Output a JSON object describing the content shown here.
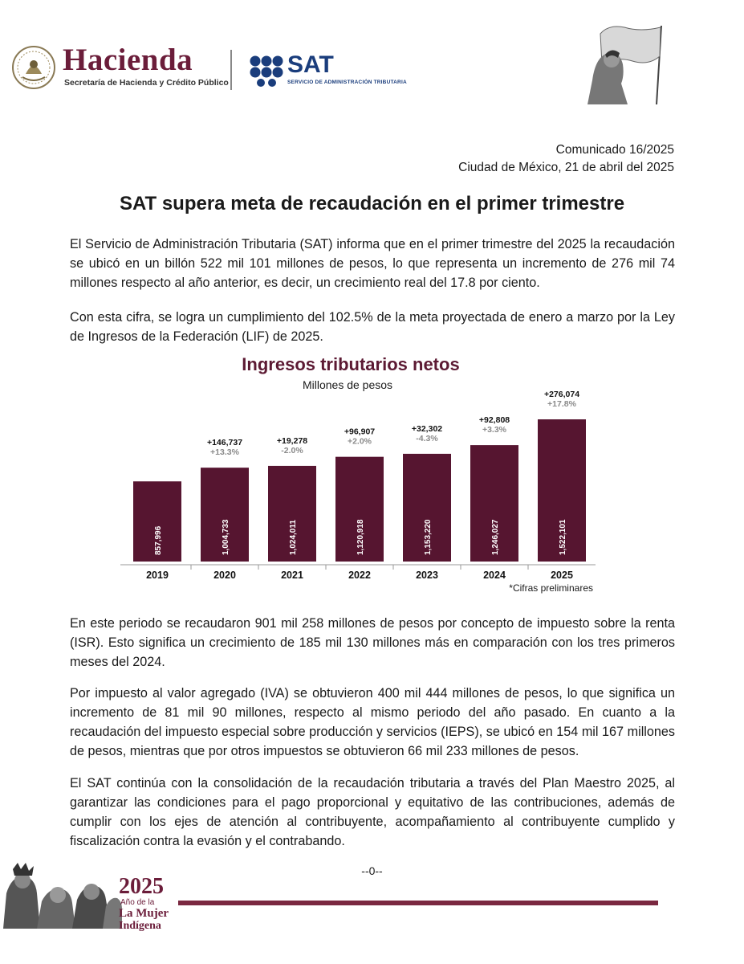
{
  "header": {
    "hacienda_title": "Hacienda",
    "hacienda_subtitle": "Secretaría de Hacienda y Crédito Público",
    "sat_title": "SAT",
    "sat_subtitle": "SERVICIO DE ADMINISTRACIÓN TRIBUTARIA",
    "seal_icon": "mexico-seal-icon",
    "flag_icon": "woman-with-flag-illustration"
  },
  "release": {
    "number": "Comunicado 16/2025",
    "place_date": "Ciudad de México, 21 de abril del 2025",
    "headline": "SAT supera meta de recaudación en el primer trimestre"
  },
  "paragraphs": {
    "p1": "El Servicio de Administración Tributaria (SAT) informa que en el primer trimestre del 2025 la recaudación se ubicó en un billón 522 mil 101 millones de pesos, lo que representa un incremento de 276 mil 74 millones respecto al año anterior, es decir, un crecimiento real del 17.8 por ciento.",
    "p2": "Con esta cifra, se logra un cumplimiento del 102.5% de la meta proyectada de enero a marzo por la Ley de Ingresos de la Federación (LIF) de 2025.",
    "p3": "En este periodo se recaudaron 901 mil 258 millones de pesos por concepto de impuesto sobre la renta (ISR). Esto significa un crecimiento de 185 mil 130 millones más en comparación con los tres primeros meses del 2024.",
    "p4": "Por impuesto al valor agregado (IVA) se obtuvieron 400 mil 444 millones de pesos, lo que significa un incremento de 81 mil 90 millones, respecto al mismo periodo del año pasado. En cuanto a la recaudación del impuesto especial sobre producción y servicios (IEPS), se ubicó en 154 mil 167 millones de pesos, mientras que por otros impuestos se obtuvieron 66 mil 233 millones de pesos.",
    "p5": "El SAT continúa con la consolidación de la recaudación tributaria a través del Plan Maestro 2025, al garantizar las condiciones para el pago proporcional y equitativo de las contribuciones, además de cumplir con los ejes de atención al contribuyente, acompañamiento al contribuyente cumplido y fiscalización contra la evasión y el contrabando."
  },
  "chart_data": {
    "type": "bar",
    "title": "Ingresos tributarios netos",
    "subtitle": "Millones de pesos",
    "categories": [
      "2019",
      "2020",
      "2021",
      "2022",
      "2023",
      "2024",
      "2025"
    ],
    "values": [
      857996,
      1004733,
      1024011,
      1120918,
      1153220,
      1246027,
      1522101
    ],
    "value_labels": [
      "857,996",
      "1,004,733",
      "1,024,011",
      "1,120,918",
      "1,153,220",
      "1,246,027",
      "1,522,101"
    ],
    "change_abs": [
      "",
      "+146,737",
      "+19,278",
      "+96,907",
      "+32,302",
      "+92,808",
      "+276,074"
    ],
    "change_pct": [
      "",
      "+13.3%",
      "-2.0%",
      "+2.0%",
      "-4.3%",
      "+3.3%",
      "+17.8%"
    ],
    "note": "*Cifras preliminares",
    "bar_color": "#561530",
    "grid": false
  },
  "footer": {
    "end_mark": "--0--",
    "year": "2025",
    "line1": "Año de la",
    "line2": "La Mujer",
    "line3": "Indígena",
    "accent_color": "#7a2840",
    "illustration_icon": "indigenous-women-illustration"
  }
}
